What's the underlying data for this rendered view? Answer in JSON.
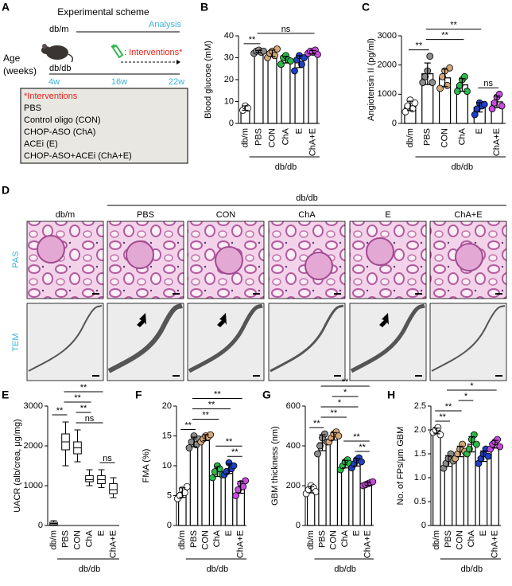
{
  "scheme": {
    "panel": "A",
    "title": "Experimental scheme",
    "strain_top": "db/m",
    "analysis": "Analysis",
    "age": "Age",
    "age_unit": "(weeks)",
    "strain_bottom": "db/db",
    "intervention_label": ": Interventions*",
    "weeks": [
      "4w",
      "16w",
      "22w"
    ],
    "box_title": "*Interventions",
    "box_items": [
      "PBS",
      "Control oligo (CON)",
      "CHOP-ASO (ChA)",
      "ACEi (E)",
      "CHOP-ASO+ACEi (ChA+E)"
    ]
  },
  "histology": {
    "panel": "D",
    "group": "db/db",
    "columns": [
      "db/m",
      "PBS",
      "CON",
      "ChA",
      "E",
      "ChA+E"
    ],
    "rows": [
      "PAS",
      "TEM"
    ]
  },
  "chart_data": [
    {
      "type": "bar",
      "panel": "B",
      "ylabel": "Blood glucose (mM)",
      "ylim": [
        0,
        40
      ],
      "yticks": [
        0,
        10,
        20,
        30,
        40
      ],
      "categories": [
        "db/m",
        "PBS",
        "CON",
        "ChA",
        "E",
        "ChA+E"
      ],
      "colors": [
        "#ffffff",
        "#8c8c8c",
        "#d4a87a",
        "#2db84b",
        "#1f3fc4",
        "#c84ae0"
      ],
      "values": [
        7,
        32.8,
        32,
        29.1,
        28.2,
        32.5
      ],
      "errors": [
        1,
        0.5,
        1.5,
        1.5,
        2.7,
        0.8
      ],
      "points": [
        [
          6,
          8,
          7
        ],
        [
          32,
          33,
          33.5,
          32.5,
          33
        ],
        [
          30,
          32,
          33,
          31,
          34
        ],
        [
          27,
          30,
          31,
          29,
          28.5
        ],
        [
          24,
          29,
          31,
          27,
          30
        ],
        [
          32,
          33,
          32.5,
          33.5,
          31.5
        ]
      ],
      "annotations": [
        {
          "label": "**",
          "from": "db/m",
          "to": "PBS"
        },
        {
          "label": "ns",
          "from": "PBS",
          "to": "ChA+E"
        }
      ],
      "group_label": "db/db"
    },
    {
      "type": "bar",
      "panel": "C",
      "ylabel": "Angiotensin II (pg/ml)",
      "ylim": [
        0,
        3000
      ],
      "yticks": [
        0,
        1000,
        2000,
        3000
      ],
      "categories": [
        "db/m",
        "PBS",
        "CON",
        "ChA",
        "E",
        "ChA+E"
      ],
      "colors": [
        "#ffffff",
        "#8c8c8c",
        "#d4a87a",
        "#2db84b",
        "#1f3fc4",
        "#c84ae0"
      ],
      "values": [
        600,
        1700,
        1560,
        1320,
        550,
        740
      ],
      "errors": [
        160,
        370,
        300,
        220,
        160,
        200
      ],
      "points": [
        [
          400,
          600,
          800,
          500,
          700
        ],
        [
          1400,
          1600,
          1800,
          2300,
          1400
        ],
        [
          1200,
          1600,
          1800,
          1300,
          1900
        ],
        [
          1100,
          1300,
          1500,
          1600,
          1100
        ],
        [
          300,
          500,
          700,
          600,
          650
        ],
        [
          500,
          700,
          900,
          1000,
          600
        ]
      ],
      "annotations": [
        {
          "label": "**",
          "from": "db/m",
          "to": "PBS"
        },
        {
          "label": "ns",
          "from": "E",
          "to": "ChA+E"
        },
        {
          "label": "**",
          "from": "PBS",
          "to": "ChA"
        },
        {
          "label": "**",
          "from": "PBS",
          "to": "E"
        }
      ],
      "group_label": "db/db"
    },
    {
      "type": "box",
      "panel": "E",
      "ylabel": "UACR (alb/crea, μg/mg)",
      "ylim": [
        0,
        3000
      ],
      "yticks": [
        0,
        1000,
        2000,
        3000
      ],
      "categories": [
        "db/m",
        "PBS",
        "CON",
        "ChA",
        "E",
        "ChA+E"
      ],
      "boxes": {
        "min": [
          0,
          1500,
          1600,
          1000,
          950,
          700
        ],
        "q1": [
          20,
          1900,
          1800,
          1100,
          1050,
          800
        ],
        "median": [
          50,
          2100,
          1950,
          1150,
          1150,
          900
        ],
        "q3": [
          80,
          2300,
          2100,
          1250,
          1250,
          1050
        ],
        "max": [
          120,
          2600,
          2400,
          1400,
          1400,
          1200
        ]
      },
      "annotations": [
        {
          "label": "**",
          "from": "db/m",
          "to": "PBS"
        },
        {
          "label": "ns",
          "from": "E",
          "to": "ChA+E"
        },
        {
          "label": "ns",
          "from": "CON",
          "to": "E"
        },
        {
          "label": "**",
          "from": "CON",
          "to": "ChA"
        },
        {
          "label": "**",
          "from": "PBS",
          "to": "ChA"
        },
        {
          "label": "**",
          "from": "PBS",
          "to": "E"
        }
      ],
      "group_label": "db/db"
    },
    {
      "type": "bar",
      "panel": "F",
      "ylabel": "FMA (%)",
      "ylim": [
        0,
        20
      ],
      "yticks": [
        0,
        5,
        10,
        15,
        20
      ],
      "categories": [
        "db/m",
        "PBS",
        "CON",
        "ChA",
        "E",
        "ChA+E"
      ],
      "colors": [
        "#ffffff",
        "#8c8c8c",
        "#d4a87a",
        "#2db84b",
        "#1f3fc4",
        "#c84ae0"
      ],
      "values": [
        5.5,
        14,
        14.7,
        9,
        9.5,
        6.4
      ],
      "errors": [
        0.8,
        0.8,
        0.5,
        0.8,
        0.8,
        1
      ],
      "points": [
        [
          4.5,
          5,
          6,
          5.5,
          6.5
        ],
        [
          13,
          14,
          15,
          13.5,
          14.5
        ],
        [
          14,
          14.5,
          15,
          14.8,
          15.2
        ],
        [
          8,
          9,
          10,
          9.5,
          8.5
        ],
        [
          8.5,
          9,
          10.5,
          9.5,
          10
        ],
        [
          5,
          6,
          7,
          6.5,
          7.5
        ]
      ],
      "annotations": [
        {
          "label": "**",
          "from": "E",
          "to": "ChA+E"
        },
        {
          "label": "**",
          "from": "ChA",
          "to": "ChA+E"
        },
        {
          "label": "**",
          "from": "db/m",
          "to": "PBS"
        },
        {
          "label": "**",
          "from": "PBS",
          "to": "ChA"
        },
        {
          "label": "**",
          "from": "PBS",
          "to": "E"
        },
        {
          "label": "**",
          "from": "PBS",
          "to": "ChA+E"
        }
      ],
      "group_label": "db/db"
    },
    {
      "type": "bar",
      "panel": "G",
      "ylabel": "GBM thickness (nm)",
      "ylim": [
        0,
        600
      ],
      "yticks": [
        0,
        200,
        400,
        600
      ],
      "categories": [
        "db/m",
        "PBS",
        "CON",
        "ChA",
        "E",
        "ChA+E"
      ],
      "colors": [
        "#ffffff",
        "#8c8c8c",
        "#d4a87a",
        "#2db84b",
        "#1f3fc4",
        "#c84ae0"
      ],
      "values": [
        180,
        416,
        448,
        308,
        318,
        210
      ],
      "errors": [
        16,
        40,
        19,
        19,
        19,
        8
      ],
      "points": [
        [
          160,
          180,
          200,
          190,
          170
        ],
        [
          360,
          400,
          440,
          460,
          420
        ],
        [
          420,
          440,
          460,
          470,
          450
        ],
        [
          280,
          300,
          320,
          330,
          310
        ],
        [
          290,
          310,
          330,
          340,
          320
        ],
        [
          200,
          205,
          210,
          215,
          220
        ]
      ],
      "annotations": [
        {
          "label": "**",
          "from": "E",
          "to": "ChA+E"
        },
        {
          "label": "**",
          "from": "ChA",
          "to": "ChA+E"
        },
        {
          "label": "**",
          "from": "db/m",
          "to": "PBS"
        },
        {
          "label": "**",
          "from": "PBS",
          "to": "ChA"
        },
        {
          "label": "*",
          "from": "PBS",
          "to": "E"
        },
        {
          "label": "*",
          "from": "CON",
          "to": "E"
        },
        {
          "label": "**",
          "from": "PBS",
          "to": "ChA+E"
        }
      ],
      "group_label": "db/db"
    },
    {
      "type": "bar",
      "panel": "H",
      "ylabel": "No. of FPs/μm GBM",
      "ylim": [
        0,
        2.5
      ],
      "yticks": [
        0,
        0.5,
        {
          "value": 1,
          "label": "1.0"
        },
        1.5,
        {
          "value": 2,
          "label": "2.0"
        },
        2.5
      ],
      "categories": [
        "db/m",
        "PBS",
        "CON",
        "ChA",
        "E",
        "ChA+E"
      ],
      "colors": [
        "#ffffff",
        "#8c8c8c",
        "#d4a87a",
        "#2db84b",
        "#1f3fc4",
        "#c84ae0"
      ],
      "values": [
        1.98,
        1.35,
        1.55,
        1.7,
        1.45,
        1.7
      ],
      "errors": [
        0.06,
        0.11,
        0.11,
        0.16,
        0.11,
        0.08
      ],
      "points": [
        [
          1.95,
          2,
          2.05,
          1.9
        ],
        [
          1.2,
          1.3,
          1.4,
          1.5,
          1.35
        ],
        [
          1.4,
          1.5,
          1.6,
          1.7,
          1.55
        ],
        [
          1.5,
          1.6,
          1.8,
          1.9,
          1.7
        ],
        [
          1.3,
          1.4,
          1.5,
          1.6,
          1.45
        ],
        [
          1.6,
          1.7,
          1.75,
          1.8,
          1.65
        ]
      ],
      "annotations": [
        {
          "label": "**",
          "from": "db/m",
          "to": "PBS"
        },
        {
          "label": "**",
          "from": "db/m",
          "to": "CON"
        },
        {
          "label": "*",
          "from": "CON",
          "to": "ChA"
        },
        {
          "label": "*",
          "from": "PBS",
          "to": "ChA+E"
        }
      ],
      "group_label": "db/db"
    }
  ]
}
